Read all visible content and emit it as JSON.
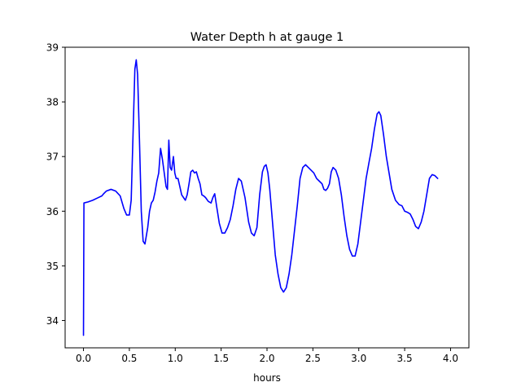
{
  "chart_data": {
    "type": "line",
    "title": "Water Depth h at gauge 1",
    "xlabel": "hours",
    "ylabel": "",
    "xlim": [
      -0.2,
      4.2
    ],
    "ylim": [
      33.5,
      39.0
    ],
    "xticks": [
      0.0,
      0.5,
      1.0,
      1.5,
      2.0,
      2.5,
      3.0,
      3.5,
      4.0
    ],
    "xtick_labels": [
      "0.0",
      "0.5",
      "1.0",
      "1.5",
      "2.0",
      "2.5",
      "3.0",
      "3.5",
      "4.0"
    ],
    "yticks": [
      34,
      35,
      36,
      37,
      38,
      39
    ],
    "ytick_labels": [
      "34",
      "35",
      "36",
      "37",
      "38",
      "39"
    ],
    "grid": false,
    "series": [
      {
        "color": "#0000ff",
        "points": [
          [
            0.0,
            33.73
          ],
          [
            0.005,
            36.15
          ],
          [
            0.05,
            36.17
          ],
          [
            0.1,
            36.2
          ],
          [
            0.15,
            36.24
          ],
          [
            0.2,
            36.28
          ],
          [
            0.22,
            36.32
          ],
          [
            0.25,
            36.37
          ],
          [
            0.3,
            36.4
          ],
          [
            0.35,
            36.37
          ],
          [
            0.4,
            36.28
          ],
          [
            0.44,
            36.05
          ],
          [
            0.47,
            35.93
          ],
          [
            0.5,
            35.93
          ],
          [
            0.52,
            36.2
          ],
          [
            0.54,
            37.4
          ],
          [
            0.56,
            38.6
          ],
          [
            0.575,
            38.77
          ],
          [
            0.59,
            38.5
          ],
          [
            0.61,
            37.3
          ],
          [
            0.63,
            36.0
          ],
          [
            0.65,
            35.45
          ],
          [
            0.67,
            35.4
          ],
          [
            0.7,
            35.7
          ],
          [
            0.72,
            36.0
          ],
          [
            0.74,
            36.15
          ],
          [
            0.76,
            36.2
          ],
          [
            0.78,
            36.35
          ],
          [
            0.8,
            36.55
          ],
          [
            0.82,
            36.7
          ],
          [
            0.84,
            37.15
          ],
          [
            0.86,
            36.95
          ],
          [
            0.88,
            36.7
          ],
          [
            0.9,
            36.45
          ],
          [
            0.915,
            36.4
          ],
          [
            0.93,
            37.3
          ],
          [
            0.945,
            36.8
          ],
          [
            0.96,
            36.75
          ],
          [
            0.98,
            37.0
          ],
          [
            0.995,
            36.7
          ],
          [
            1.01,
            36.6
          ],
          [
            1.03,
            36.6
          ],
          [
            1.05,
            36.45
          ],
          [
            1.07,
            36.3
          ],
          [
            1.09,
            36.25
          ],
          [
            1.11,
            36.2
          ],
          [
            1.13,
            36.3
          ],
          [
            1.15,
            36.5
          ],
          [
            1.17,
            36.72
          ],
          [
            1.19,
            36.75
          ],
          [
            1.21,
            36.7
          ],
          [
            1.23,
            36.72
          ],
          [
            1.25,
            36.6
          ],
          [
            1.27,
            36.5
          ],
          [
            1.29,
            36.3
          ],
          [
            1.31,
            36.28
          ],
          [
            1.33,
            36.25
          ],
          [
            1.36,
            36.18
          ],
          [
            1.39,
            36.15
          ],
          [
            1.41,
            36.25
          ],
          [
            1.43,
            36.32
          ],
          [
            1.45,
            36.1
          ],
          [
            1.48,
            35.78
          ],
          [
            1.51,
            35.6
          ],
          [
            1.54,
            35.6
          ],
          [
            1.57,
            35.7
          ],
          [
            1.6,
            35.85
          ],
          [
            1.63,
            36.1
          ],
          [
            1.66,
            36.4
          ],
          [
            1.69,
            36.6
          ],
          [
            1.72,
            36.55
          ],
          [
            1.76,
            36.25
          ],
          [
            1.8,
            35.8
          ],
          [
            1.83,
            35.6
          ],
          [
            1.86,
            35.55
          ],
          [
            1.89,
            35.7
          ],
          [
            1.92,
            36.3
          ],
          [
            1.95,
            36.72
          ],
          [
            1.97,
            36.82
          ],
          [
            1.99,
            36.85
          ],
          [
            2.01,
            36.7
          ],
          [
            2.03,
            36.4
          ],
          [
            2.06,
            35.8
          ],
          [
            2.09,
            35.2
          ],
          [
            2.12,
            34.85
          ],
          [
            2.15,
            34.6
          ],
          [
            2.18,
            34.52
          ],
          [
            2.21,
            34.6
          ],
          [
            2.24,
            34.85
          ],
          [
            2.27,
            35.2
          ],
          [
            2.3,
            35.65
          ],
          [
            2.33,
            36.1
          ],
          [
            2.36,
            36.6
          ],
          [
            2.39,
            36.8
          ],
          [
            2.42,
            36.85
          ],
          [
            2.45,
            36.8
          ],
          [
            2.48,
            36.75
          ],
          [
            2.51,
            36.7
          ],
          [
            2.54,
            36.6
          ],
          [
            2.57,
            36.55
          ],
          [
            2.6,
            36.5
          ],
          [
            2.62,
            36.4
          ],
          [
            2.64,
            36.38
          ],
          [
            2.66,
            36.42
          ],
          [
            2.68,
            36.5
          ],
          [
            2.7,
            36.72
          ],
          [
            2.72,
            36.8
          ],
          [
            2.75,
            36.75
          ],
          [
            2.78,
            36.6
          ],
          [
            2.81,
            36.3
          ],
          [
            2.84,
            35.9
          ],
          [
            2.87,
            35.55
          ],
          [
            2.9,
            35.3
          ],
          [
            2.93,
            35.18
          ],
          [
            2.96,
            35.18
          ],
          [
            2.99,
            35.4
          ],
          [
            3.02,
            35.8
          ],
          [
            3.05,
            36.2
          ],
          [
            3.08,
            36.6
          ],
          [
            3.11,
            36.88
          ],
          [
            3.14,
            37.15
          ],
          [
            3.17,
            37.5
          ],
          [
            3.2,
            37.78
          ],
          [
            3.22,
            37.82
          ],
          [
            3.24,
            37.75
          ],
          [
            3.27,
            37.4
          ],
          [
            3.3,
            37.0
          ],
          [
            3.33,
            36.7
          ],
          [
            3.36,
            36.4
          ],
          [
            3.4,
            36.2
          ],
          [
            3.44,
            36.12
          ],
          [
            3.47,
            36.1
          ],
          [
            3.5,
            36.0
          ],
          [
            3.53,
            35.98
          ],
          [
            3.56,
            35.95
          ],
          [
            3.59,
            35.85
          ],
          [
            3.62,
            35.72
          ],
          [
            3.65,
            35.68
          ],
          [
            3.68,
            35.8
          ],
          [
            3.71,
            36.0
          ],
          [
            3.74,
            36.3
          ],
          [
            3.77,
            36.6
          ],
          [
            3.8,
            36.67
          ],
          [
            3.83,
            36.65
          ],
          [
            3.86,
            36.6
          ]
        ]
      }
    ]
  }
}
